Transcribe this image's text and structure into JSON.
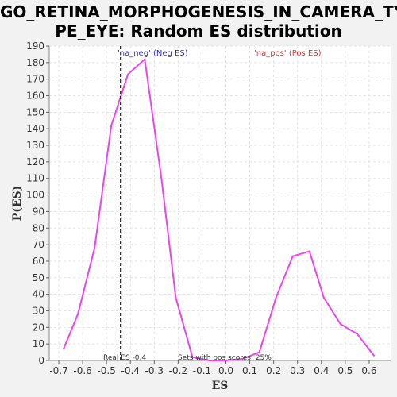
{
  "chart_data": {
    "type": "line",
    "title_line1": "GO_RETINA_MORPHOGENESIS_IN_CAMERA_TY",
    "title_line2": "PE_EYE: Random ES distribution",
    "xlabel": "ES",
    "ylabel": "P(ES)",
    "xlim": [
      -0.74,
      0.69
    ],
    "ylim": [
      0,
      190
    ],
    "x_ticks": [
      "-0.7",
      "-0.6",
      "-0.5",
      "-0.4",
      "-0.3",
      "-0.2",
      "-0.1",
      "0.0",
      "0.1",
      "0.2",
      "0.3",
      "0.4",
      "0.5",
      "0.6"
    ],
    "y_ticks": [
      "0",
      "10",
      "20",
      "30",
      "40",
      "50",
      "60",
      "70",
      "80",
      "90",
      "100",
      "110",
      "120",
      "130",
      "140",
      "150",
      "160",
      "170",
      "180",
      "190"
    ],
    "grid": true,
    "series": [
      {
        "color": "#ee44ee",
        "x": [
          -0.68,
          -0.62,
          -0.55,
          -0.48,
          -0.41,
          -0.34,
          -0.27,
          -0.21,
          -0.14,
          -0.07,
          0.0,
          0.07,
          0.14,
          0.21,
          0.28,
          0.35,
          0.41,
          0.48,
          0.55,
          0.62
        ],
        "y": [
          7,
          28,
          68,
          142,
          173,
          182,
          110,
          38,
          2,
          0,
          0,
          1,
          5,
          38,
          63,
          66,
          38,
          22,
          16,
          3
        ]
      }
    ],
    "real_es": -0.44,
    "legend_neg": "'na_neg' (Neg ES)",
    "legend_pos": "'na_pos' (Pos ES)",
    "legend_neg_color": "#3333cc",
    "legend_pos_color": "#dd3333",
    "annotation_real_es": "Real ES -0.4",
    "annotation_sets": "Sets with pos scores: 25%"
  }
}
